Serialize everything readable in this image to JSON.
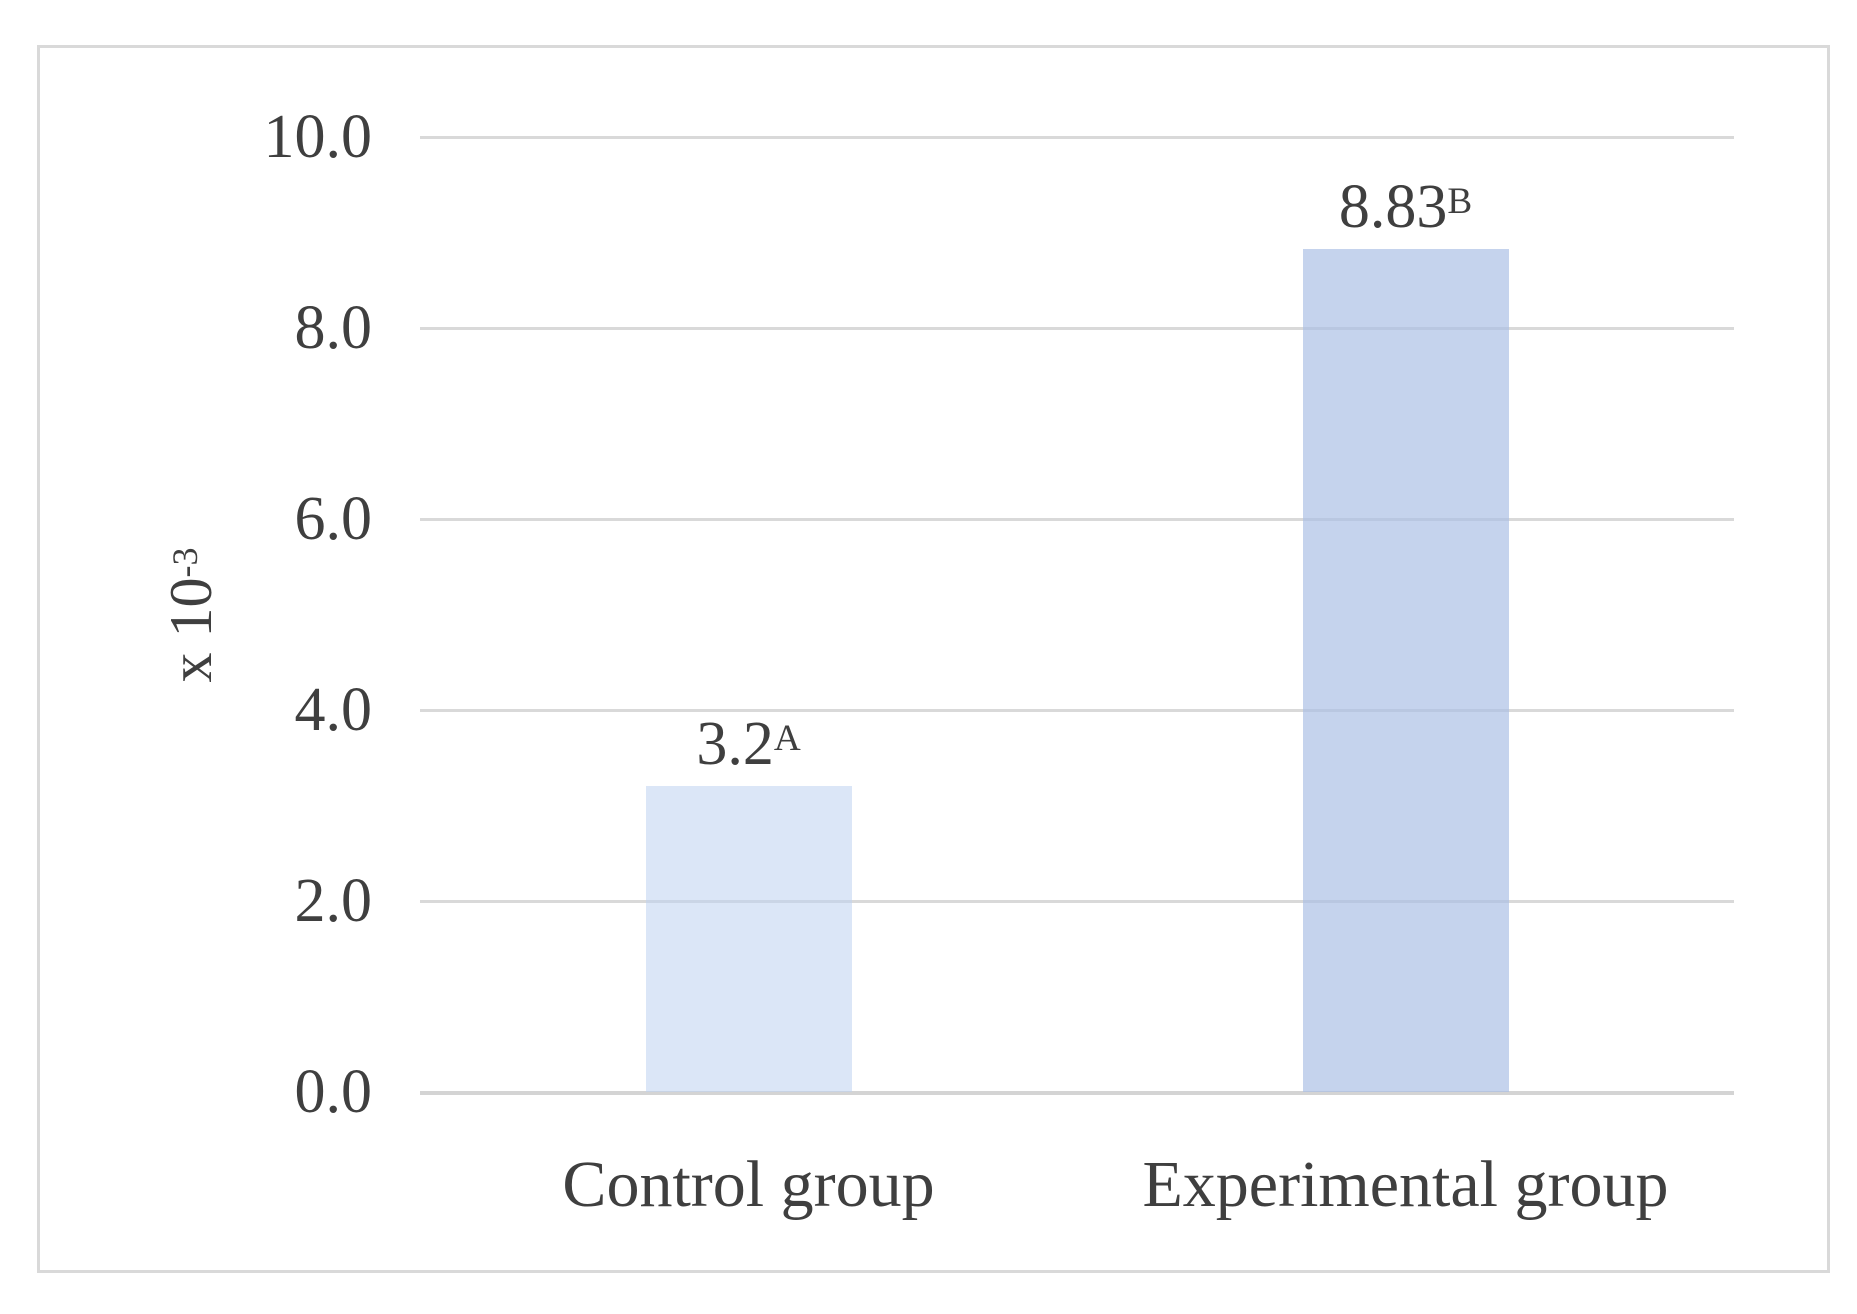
{
  "chart_data": {
    "type": "bar",
    "categories": [
      "Control group",
      "Experimental group"
    ],
    "values": [
      3.2,
      8.83
    ],
    "bar_labels": [
      {
        "text": "3.2",
        "sup": "A"
      },
      {
        "text": "8.83",
        "sup": "B"
      }
    ],
    "title": "",
    "xlabel": "",
    "ylabel": {
      "prefix": "x 10",
      "sup": "-3"
    },
    "ylim": [
      0,
      10
    ],
    "yticks": [
      0,
      2,
      4,
      6,
      8,
      10
    ],
    "ytick_labels": [
      "0.0",
      "2.0",
      "4.0",
      "6.0",
      "8.0",
      "10.0"
    ],
    "grid": "horizontal",
    "legend": "none",
    "bar_colors": [
      "#dce4f4",
      "#c5d3ed"
    ],
    "bar_fills_rgba": [
      "rgba(190,210,240,0.55)",
      "rgba(170,190,228,0.68)"
    ]
  },
  "colors": {
    "frame_border": "#d9d9d9",
    "gridline": "#d9d9d9",
    "axis_line": "#d4d4d4",
    "text": "#3f3f3f",
    "background": "#ffffff"
  }
}
